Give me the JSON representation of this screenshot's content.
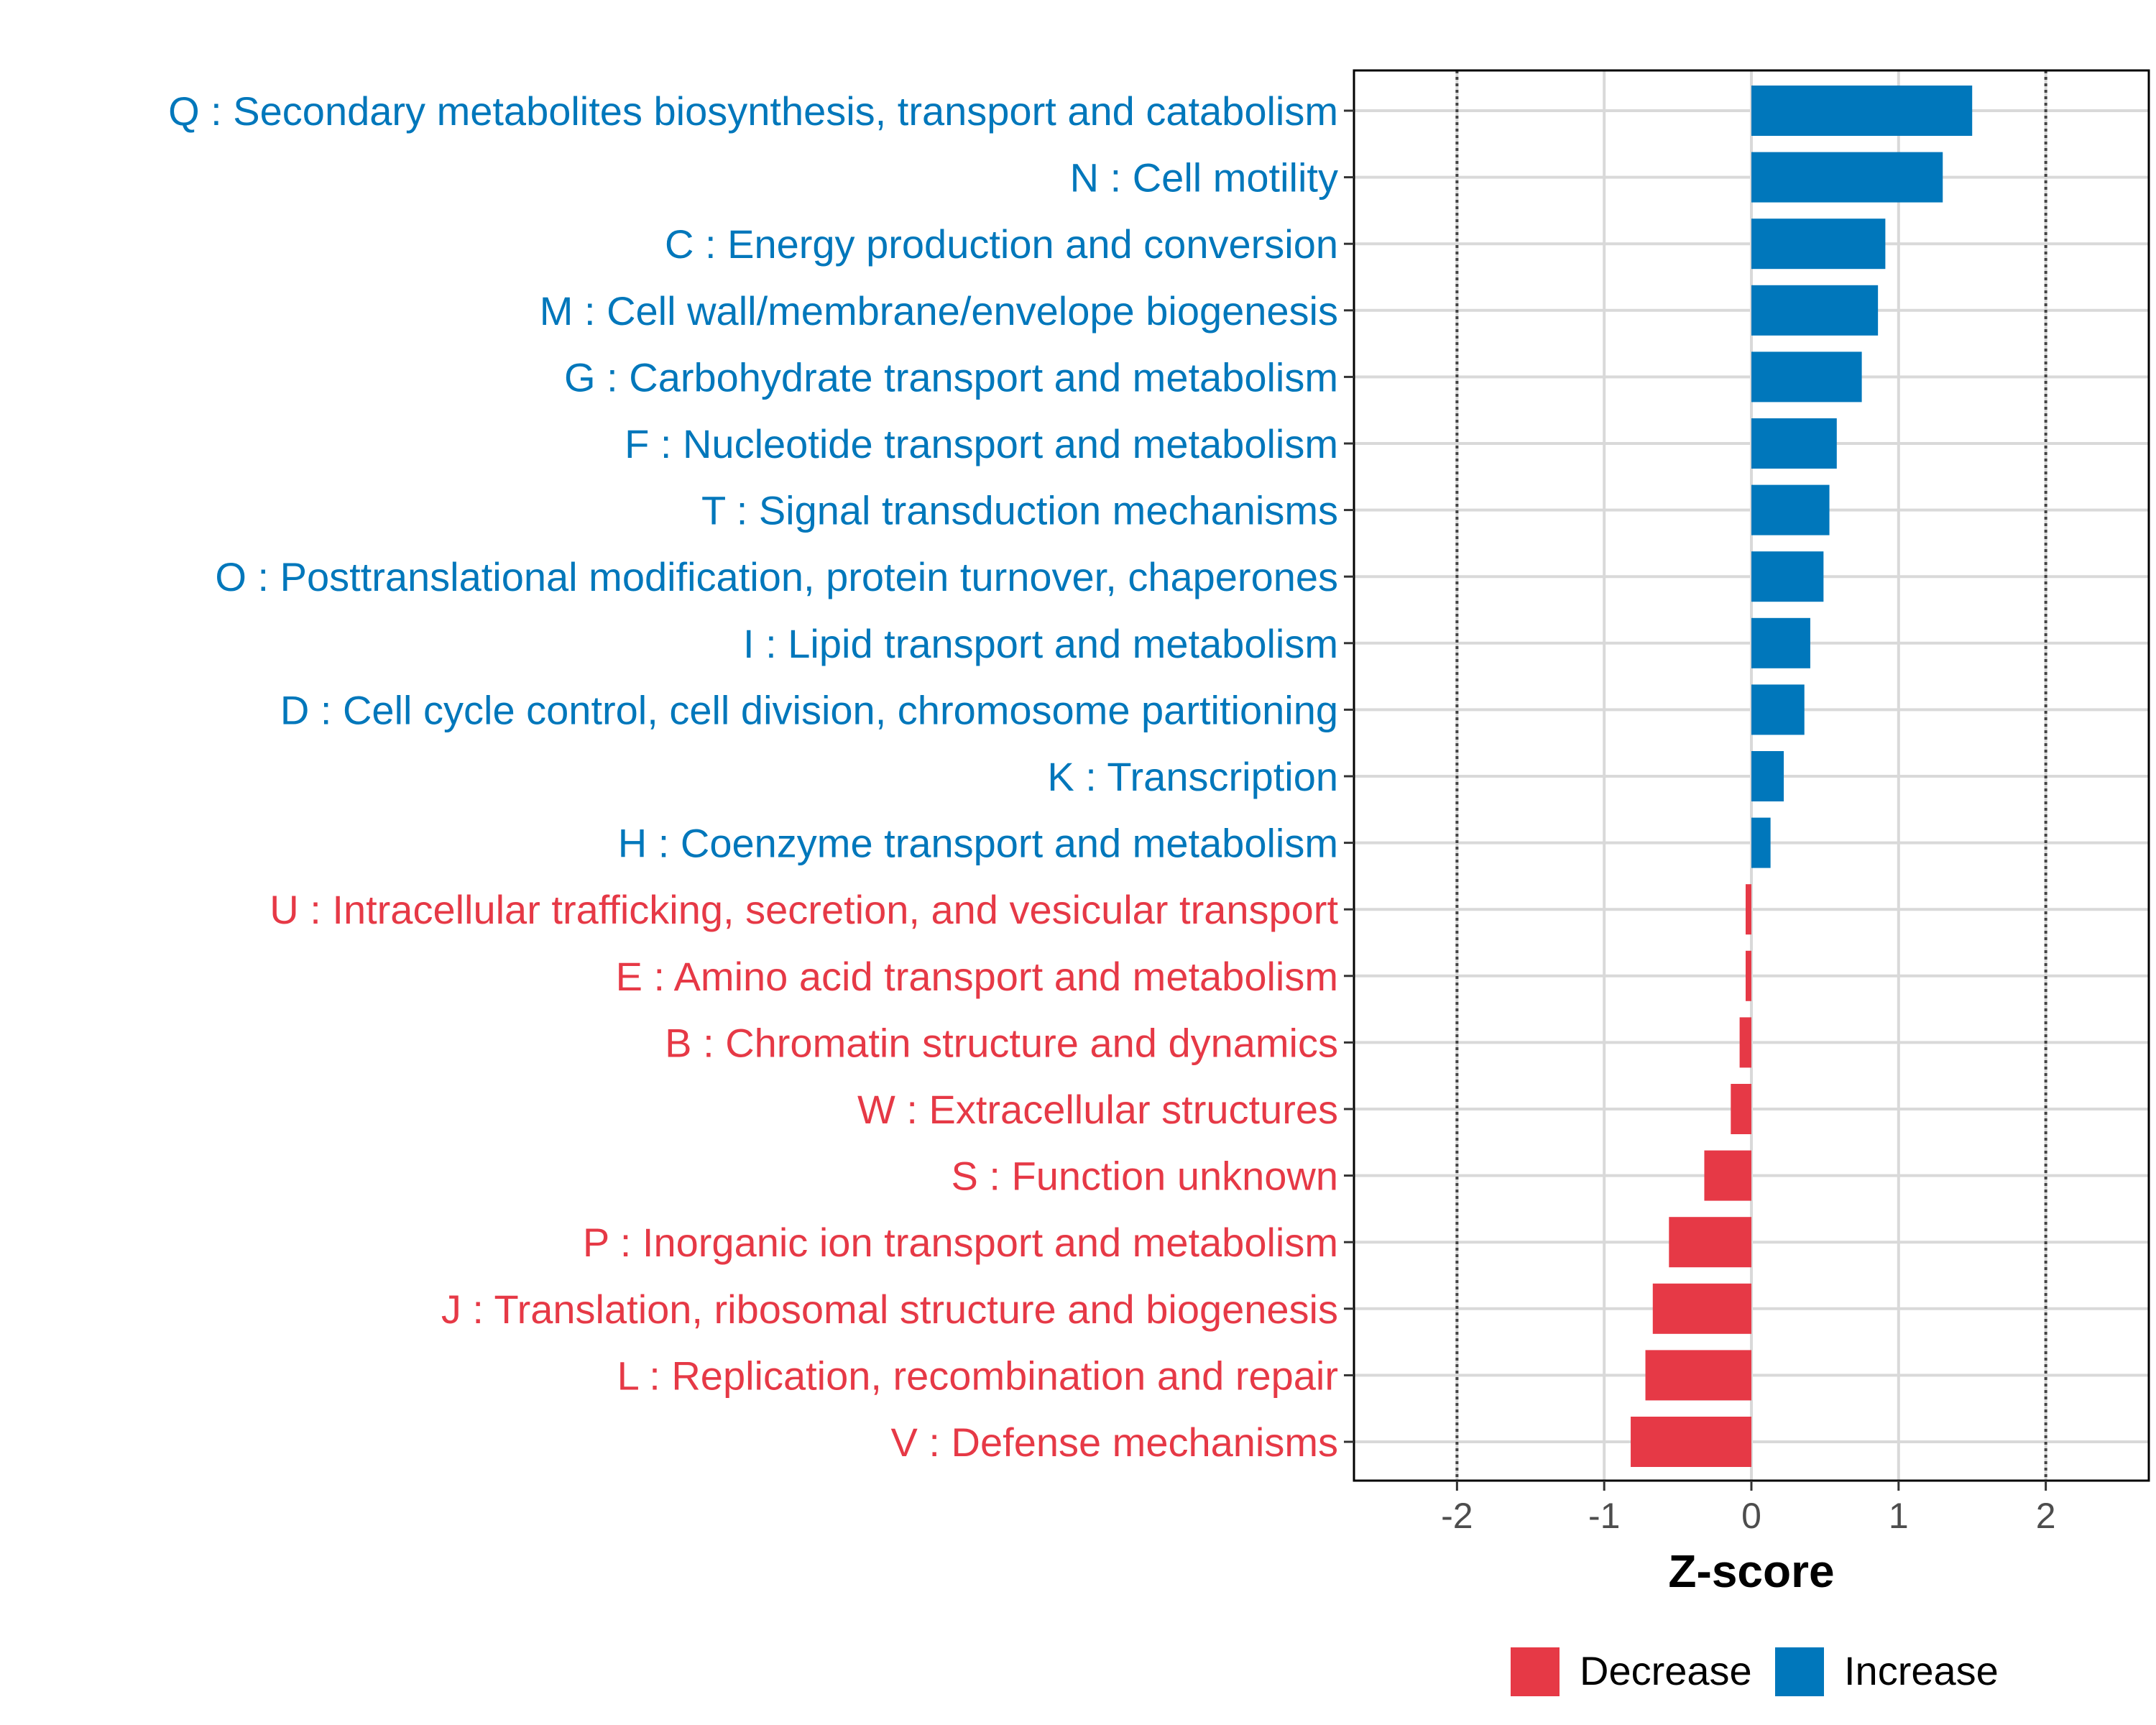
{
  "chart_data": {
    "type": "bar",
    "orientation": "horizontal",
    "title": "",
    "xlabel": "Z-score",
    "ylabel": "",
    "xlim": [
      -2.7,
      2.7
    ],
    "xticks": [
      -2,
      -1,
      0,
      1,
      2
    ],
    "tick_labels": [
      "-2",
      "-1",
      "0",
      "1",
      "2"
    ],
    "reference_lines": [
      -2,
      2
    ],
    "grid": true,
    "colors": {
      "Increase": "#0077bb",
      "Decrease": "#e63946"
    },
    "legend": {
      "position": "bottom",
      "entries": [
        {
          "label": "Decrease",
          "color": "#e63946"
        },
        {
          "label": "Increase",
          "color": "#0077bb"
        }
      ]
    },
    "categories": [
      "Q : Secondary metabolites biosynthesis, transport and catabolism",
      "N : Cell motility",
      "C : Energy production and conversion",
      "M : Cell wall/membrane/envelope biogenesis",
      "G : Carbohydrate transport and metabolism",
      "F : Nucleotide transport and metabolism",
      "T : Signal transduction mechanisms",
      "O : Posttranslational modification, protein turnover, chaperones",
      "I : Lipid transport and metabolism",
      "D : Cell cycle control, cell division, chromosome partitioning",
      "K : Transcription",
      "H : Coenzyme transport and metabolism",
      "U : Intracellular trafficking, secretion, and vesicular transport",
      "E : Amino acid transport and metabolism",
      "B : Chromatin structure and dynamics",
      "W : Extracellular structures",
      "S : Function unknown",
      "P : Inorganic ion transport and metabolism",
      "J : Translation, ribosomal structure and biogenesis",
      "L : Replication, recombination and repair",
      "V : Defense mechanisms"
    ],
    "values": [
      1.5,
      1.3,
      0.91,
      0.86,
      0.75,
      0.58,
      0.53,
      0.49,
      0.4,
      0.36,
      0.22,
      0.13,
      -0.03,
      -0.03,
      -0.08,
      -0.14,
      -0.32,
      -0.56,
      -0.67,
      -0.72,
      -0.82
    ],
    "groups": [
      "Increase",
      "Increase",
      "Increase",
      "Increase",
      "Increase",
      "Increase",
      "Increase",
      "Increase",
      "Increase",
      "Increase",
      "Increase",
      "Increase",
      "Decrease",
      "Decrease",
      "Decrease",
      "Decrease",
      "Decrease",
      "Decrease",
      "Decrease",
      "Decrease",
      "Decrease"
    ]
  }
}
